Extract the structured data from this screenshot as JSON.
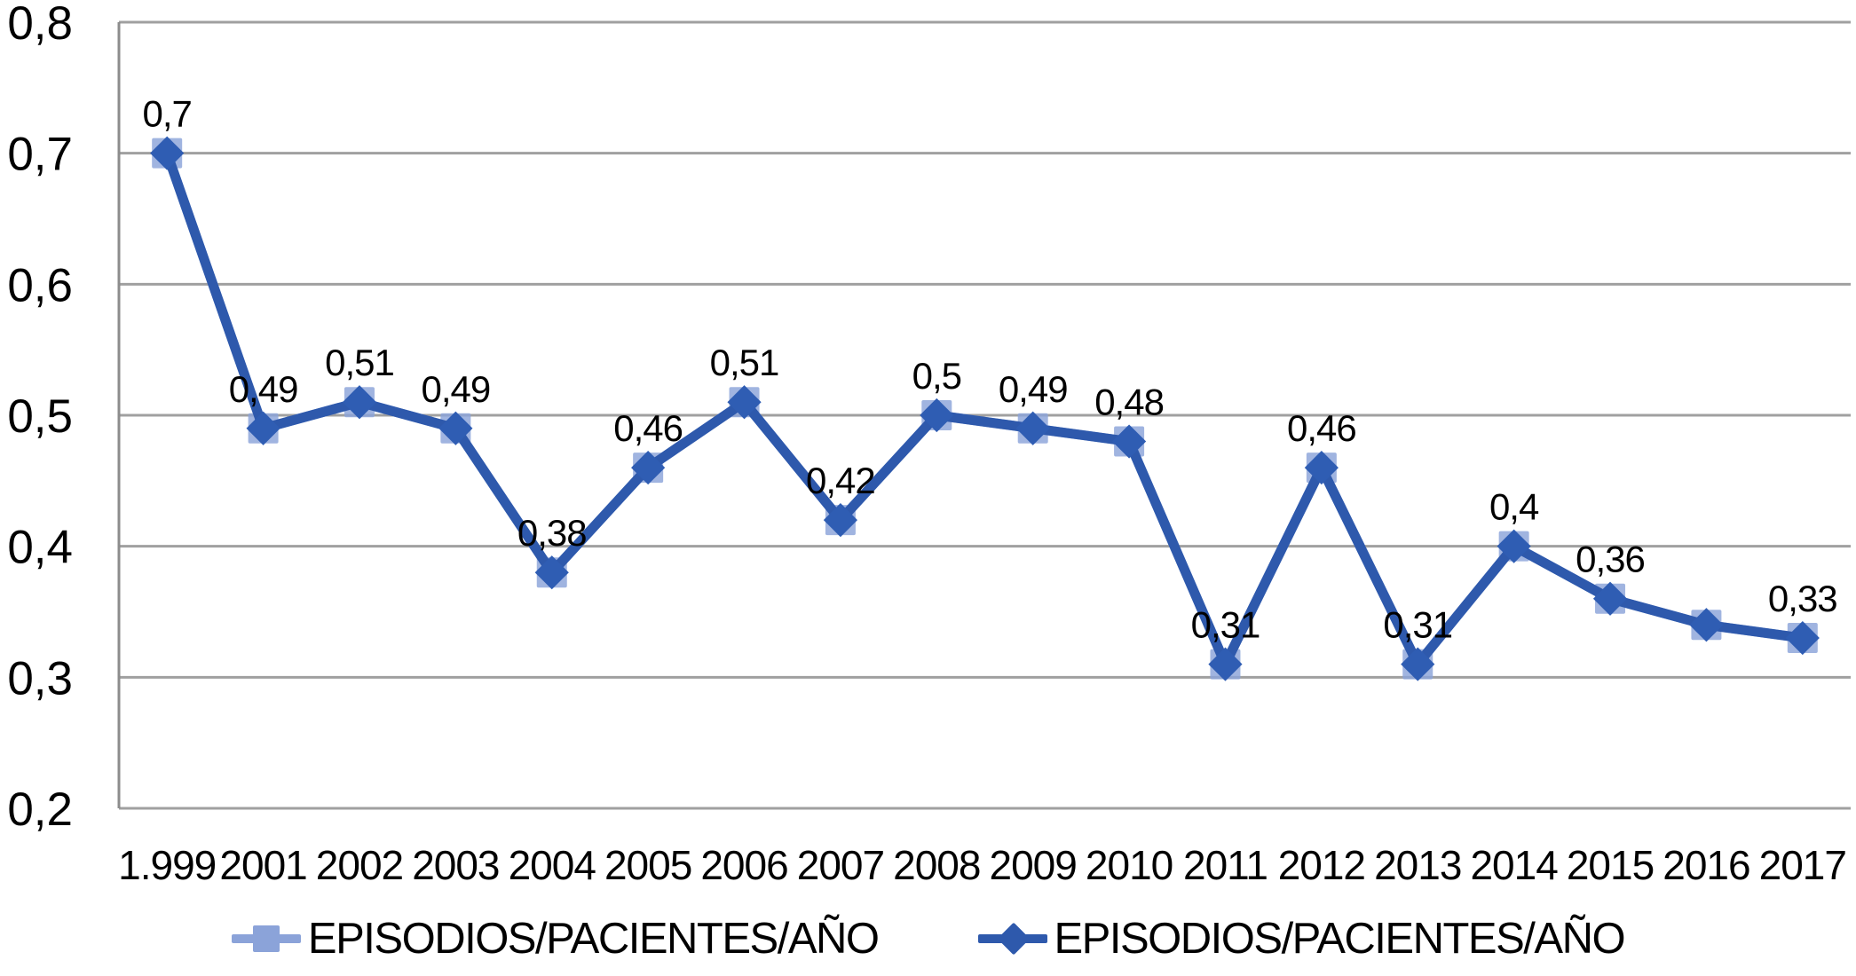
{
  "chart_data": {
    "type": "line",
    "title": "",
    "categories": [
      "1.999",
      "2001",
      "2002",
      "2003",
      "2004",
      "2005",
      "2006",
      "2007",
      "2008",
      "2009",
      "2010",
      "2011",
      "2012",
      "2013",
      "2014",
      "2015",
      "2016",
      "2017"
    ],
    "series": [
      {
        "name": "EPISODIOS/PACIENTES/AÑO",
        "marker": "square",
        "color": "#8ba3d9",
        "values": [
          0.7,
          0.49,
          0.51,
          0.49,
          0.38,
          0.46,
          0.51,
          0.42,
          0.5,
          0.49,
          0.48,
          0.31,
          0.46,
          0.31,
          0.4,
          0.36,
          0.34,
          0.33
        ]
      },
      {
        "name": "EPISODIOS/PACIENTES/AÑO",
        "marker": "diamond",
        "color": "#2e59ac",
        "values": [
          0.7,
          0.49,
          0.51,
          0.49,
          0.38,
          0.46,
          0.51,
          0.42,
          0.5,
          0.49,
          0.48,
          0.31,
          0.46,
          0.31,
          0.4,
          0.36,
          0.34,
          0.33
        ]
      }
    ],
    "data_labels": [
      "0,7",
      "0,49",
      "0,51",
      "0,49",
      "0,38",
      "0,46",
      "0,51",
      "0,42",
      "0,5",
      "0,49",
      "0,48",
      "0,31",
      "0,46",
      "0,31",
      "0,4",
      "0,36",
      "",
      "0,33"
    ],
    "xlabel": "",
    "ylabel": "",
    "ylim": [
      0.2,
      0.8
    ],
    "ytick_step": 0.1,
    "ytick_labels": [
      "0,8",
      "0,7",
      "0,6",
      "0,5",
      "0,4",
      "0,3",
      "0,2"
    ],
    "grid": true,
    "legend_position": "bottom",
    "colors": {
      "line": "#2e59ac",
      "diamond_marker": "#2f5db3",
      "square_marker": "#8ba3d9",
      "gridline": "#a0a0a0",
      "axis_line": "#8c8c8c",
      "text": "#000000",
      "background": "#ffffff"
    }
  },
  "legend": {
    "items": [
      {
        "label": "EPISODIOS/PACIENTES/AÑO",
        "marker": "square"
      },
      {
        "label": "EPISODIOS/PACIENTES/AÑO",
        "marker": "diamond"
      }
    ]
  }
}
